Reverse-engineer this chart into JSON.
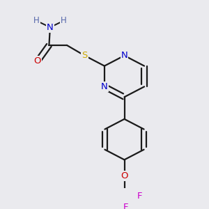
{
  "bg_color": "#eaeaee",
  "bond_color": "#1a1a1a",
  "bond_width": 1.6,
  "text_colors": {
    "O": "#cc0000",
    "N": "#0000cc",
    "S": "#ccaa00",
    "F": "#cc00cc",
    "H": "#5566aa",
    "C": "#1a1a1a"
  },
  "font_size": 9.5
}
